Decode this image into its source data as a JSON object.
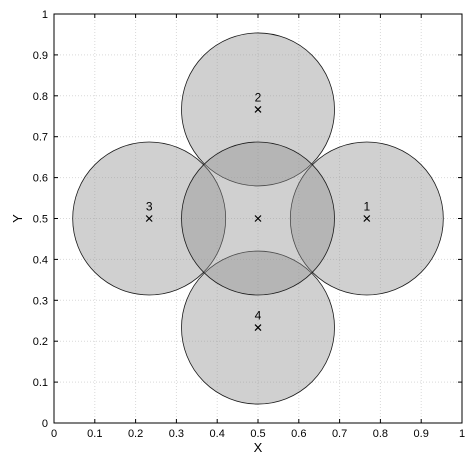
{
  "chart_data": {
    "type": "scatter",
    "title": "",
    "xlabel": "X",
    "ylabel": "Y",
    "xlim": [
      0,
      1
    ],
    "ylim": [
      0,
      1
    ],
    "xticks": [
      "0",
      "0.1",
      "0.2",
      "0.3",
      "0.4",
      "0.5",
      "0.6",
      "0.7",
      "0.8",
      "0.9",
      "1"
    ],
    "yticks": [
      "0",
      "0.1",
      "0.2",
      "0.3",
      "0.4",
      "0.5",
      "0.6",
      "0.7",
      "0.8",
      "0.9",
      "1"
    ],
    "grid": true,
    "circles": [
      {
        "label": "1",
        "cx": 0.7667,
        "cy": 0.5,
        "r": 0.1875
      },
      {
        "label": "2",
        "cx": 0.5,
        "cy": 0.7667,
        "r": 0.1875
      },
      {
        "label": "3",
        "cx": 0.2333,
        "cy": 0.5,
        "r": 0.1875
      },
      {
        "label": "4",
        "cx": 0.5,
        "cy": 0.2333,
        "r": 0.1875
      },
      {
        "label": "",
        "cx": 0.5,
        "cy": 0.5,
        "r": 0.1875
      }
    ],
    "markers": [
      {
        "x": 0.7667,
        "y": 0.5
      },
      {
        "x": 0.5,
        "y": 0.7667
      },
      {
        "x": 0.2333,
        "y": 0.5
      },
      {
        "x": 0.5,
        "y": 0.2333
      },
      {
        "x": 0.5,
        "y": 0.5
      }
    ],
    "colors": {
      "circle_fill": "#909090",
      "circle_stroke": "#1a1a1a",
      "grid": "#d9d9d9",
      "marker": "#000000"
    }
  }
}
